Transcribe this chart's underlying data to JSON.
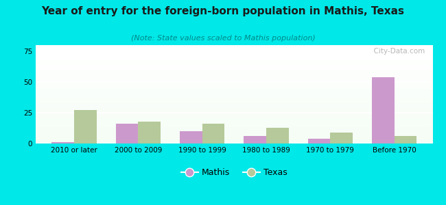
{
  "title": "Year of entry for the foreign-born population in Mathis, Texas",
  "subtitle": "(Note: State values scaled to Mathis population)",
  "categories": [
    "2010 or later",
    "2000 to 2009",
    "1990 to 1999",
    "1980 to 1989",
    "1970 to 1979",
    "Before 1970"
  ],
  "mathis_values": [
    1,
    16,
    10,
    6,
    4,
    54
  ],
  "texas_values": [
    27,
    18,
    16,
    13,
    9,
    6
  ],
  "mathis_color": "#cc99cc",
  "texas_color": "#b5c99a",
  "background_color": "#00e8e8",
  "ylim": [
    0,
    80
  ],
  "yticks": [
    0,
    25,
    50,
    75
  ],
  "bar_width": 0.35,
  "title_fontsize": 11,
  "subtitle_fontsize": 8,
  "tick_fontsize": 7.5,
  "legend_labels": [
    "Mathis",
    "Texas"
  ],
  "watermark": "  City-Data.com"
}
